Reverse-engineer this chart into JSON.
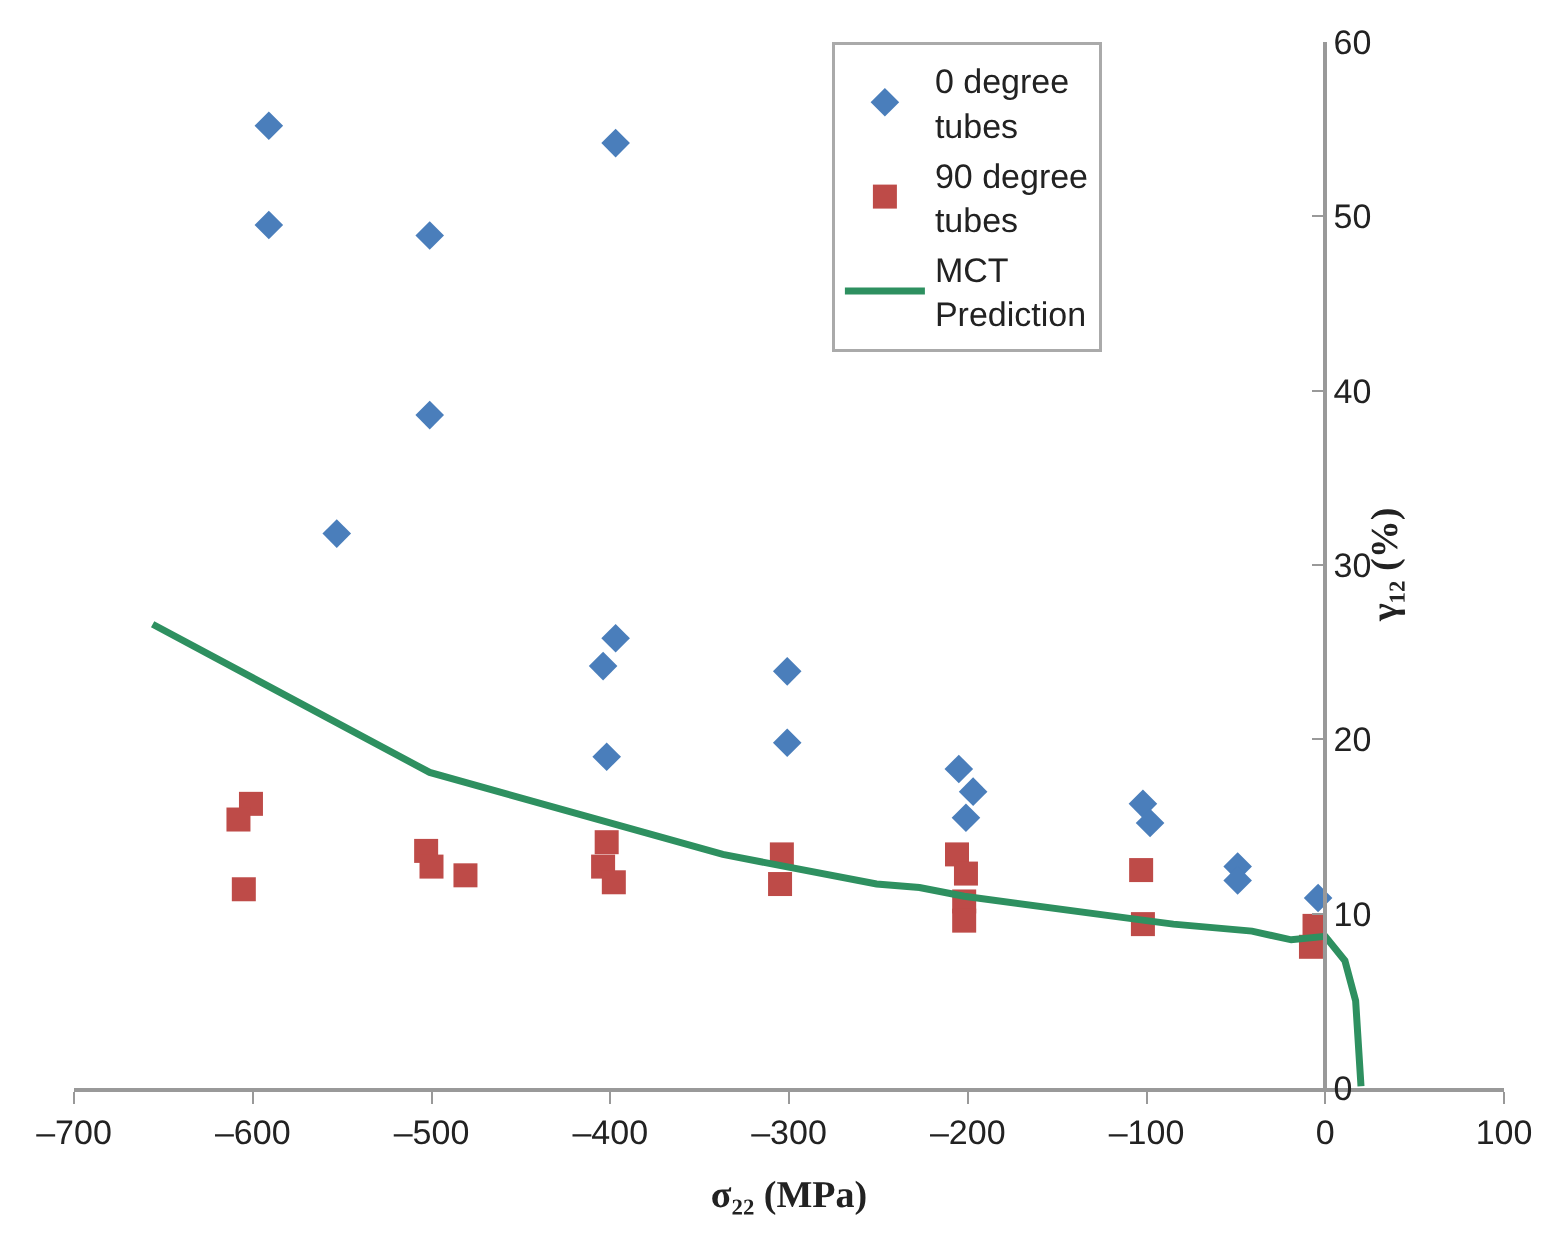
{
  "chart_data": {
    "type": "scatter",
    "xlabel": "σ₂₂ (MPa)",
    "ylabel": "γ₁₂ (%)",
    "xlim": [
      -700,
      100
    ],
    "xticks": [
      {
        "value": -700,
        "label": "–700"
      },
      {
        "value": -600,
        "label": "–600"
      },
      {
        "value": -500,
        "label": "–500"
      },
      {
        "value": -400,
        "label": "–400"
      },
      {
        "value": -300,
        "label": "–300"
      },
      {
        "value": -200,
        "label": "–200"
      },
      {
        "value": -100,
        "label": "–100"
      },
      0,
      100
    ],
    "ylim": [
      0,
      60
    ],
    "yticks": [
      0,
      10,
      20,
      30,
      40,
      50,
      60
    ],
    "legend": "top right",
    "series": [
      {
        "name": "0 degree tubes",
        "color": "#4a7ebb",
        "marker": "diamond",
        "x": [
          -591,
          -591,
          -501,
          -397,
          -501,
          -553,
          -404,
          -397,
          -402,
          -301,
          -301,
          -205,
          -197,
          -201,
          -102,
          -98,
          -49,
          -49,
          -4
        ],
        "values": [
          55.2,
          49.5,
          48.9,
          54.2,
          38.6,
          31.8,
          24.2,
          25.8,
          19.0,
          23.9,
          19.8,
          18.3,
          17.0,
          15.5,
          16.3,
          15.2,
          12.7,
          11.9,
          10.9
        ]
      },
      {
        "name": "90 degree tubes",
        "color": "#be4b48",
        "marker": "square",
        "x": [
          -601,
          -608,
          -605,
          -503,
          -500,
          -481,
          -402,
          -404,
          -398,
          -304,
          -305,
          -206,
          -201,
          -202,
          -202,
          -103,
          -102,
          -6,
          -8
        ],
        "values": [
          16.3,
          15.4,
          11.4,
          13.6,
          12.7,
          12.2,
          14.1,
          12.7,
          11.8,
          13.4,
          11.7,
          13.4,
          12.3,
          10.7,
          9.6,
          12.5,
          9.4,
          9.3,
          8.1
        ]
      },
      {
        "name": "MCT Prediction",
        "type": "line",
        "color": "#2e9060",
        "marker": "none",
        "x": [
          -656,
          -501,
          -337,
          -251,
          -227,
          -202,
          -100,
          -85,
          -41,
          -19,
          0,
          11,
          17,
          20
        ],
        "values": [
          26.6,
          18.1,
          13.4,
          11.7,
          11.5,
          11.0,
          9.6,
          9.4,
          9.0,
          8.5,
          8.7,
          7.3,
          5.0,
          0.1
        ]
      }
    ]
  }
}
